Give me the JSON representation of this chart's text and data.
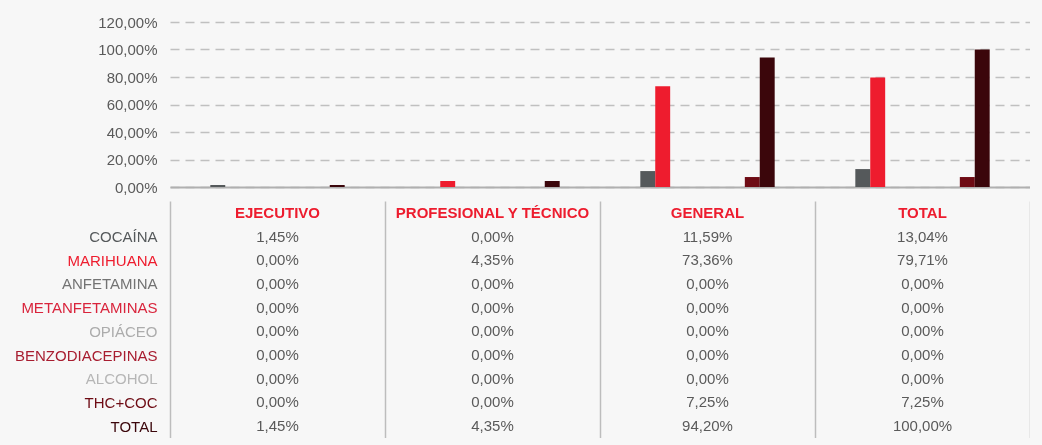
{
  "chart_data": {
    "type": "bar",
    "categories": [
      "EJECUTIVO",
      "PROFESIONAL Y TÉCNICO",
      "GENERAL",
      "TOTAL"
    ],
    "series": [
      {
        "name": "COCAÍNA",
        "color": "#55595b",
        "values": [
          1.45,
          0,
          11.59,
          13.04
        ],
        "value_labels": [
          "1,45%",
          "0,00%",
          "11,59%",
          "13,04%"
        ]
      },
      {
        "name": "MARIHUANA",
        "color": "#ee1c2e",
        "values": [
          0,
          4.35,
          73.36,
          79.71
        ],
        "value_labels": [
          "0,00%",
          "4,35%",
          "73,36%",
          "79,71%"
        ]
      },
      {
        "name": "ANFETAMINA",
        "color": "#737373",
        "values": [
          0,
          0,
          0,
          0
        ],
        "value_labels": [
          "0,00%",
          "0,00%",
          "0,00%",
          "0,00%"
        ]
      },
      {
        "name": "METANFETAMINAS",
        "color": "#d9243c",
        "values": [
          0,
          0,
          0,
          0
        ],
        "value_labels": [
          "0,00%",
          "0,00%",
          "0,00%",
          "0,00%"
        ]
      },
      {
        "name": "OPIÁCEO",
        "color": "#acacac",
        "values": [
          0,
          0,
          0,
          0
        ],
        "value_labels": [
          "0,00%",
          "0,00%",
          "0,00%",
          "0,00%"
        ]
      },
      {
        "name": "BENZODIACEPINAS",
        "color": "#a81d30",
        "values": [
          0,
          0,
          0,
          0
        ],
        "value_labels": [
          "0,00%",
          "0,00%",
          "0,00%",
          "0,00%"
        ]
      },
      {
        "name": "ALCOHOL",
        "color": "#b6b6b6",
        "values": [
          0,
          0,
          0,
          0
        ],
        "value_labels": [
          "0,00%",
          "0,00%",
          "0,00%",
          "0,00%"
        ]
      },
      {
        "name": "THC+COC",
        "color": "#6e0b14",
        "values": [
          0,
          0,
          7.25,
          7.25
        ],
        "value_labels": [
          "0,00%",
          "0,00%",
          "7,25%",
          "7,25%"
        ]
      },
      {
        "name": "TOTAL",
        "color": "#3b060b",
        "values": [
          1.45,
          4.35,
          94.2,
          100
        ],
        "value_labels": [
          "1,45%",
          "4,35%",
          "94,20%",
          "100,00%"
        ]
      }
    ],
    "ylim": [
      0,
      120
    ],
    "yticks": [
      {
        "value": 0,
        "label": "0,00%"
      },
      {
        "value": 20,
        "label": "20,00%"
      },
      {
        "value": 40,
        "label": "40,00%"
      },
      {
        "value": 60,
        "label": "60,00%"
      },
      {
        "value": 80,
        "label": "80,00%"
      },
      {
        "value": 100,
        "label": "100,00%"
      },
      {
        "value": 120,
        "label": "120,00%"
      }
    ],
    "grid": "y"
  }
}
